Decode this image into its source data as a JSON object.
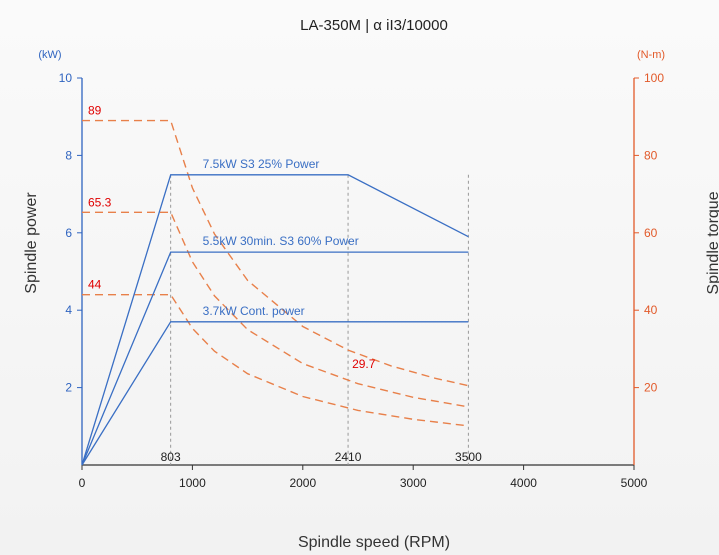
{
  "chart_data": {
    "type": "line",
    "title": "LA-350M | α iI3/10000",
    "xlabel": "Spindle speed (RPM)",
    "ylabel_left": "Spindle power",
    "ylabel_right": "Spindle torque",
    "unit_left": "(kW)",
    "unit_right": "(N-m)",
    "xlim": [
      0,
      5000
    ],
    "ylim_left": [
      0,
      10
    ],
    "ylim_right": [
      0,
      100
    ],
    "x_ticks": [
      "0",
      "1000",
      "2000",
      "3000",
      "4000",
      "5000"
    ],
    "y_left_ticks": [
      "2",
      "4",
      "6",
      "8",
      "10"
    ],
    "y_right_ticks": [
      "20",
      "40",
      "60",
      "80",
      "100"
    ],
    "colors": {
      "power": "#3a6fc4",
      "torque": "#e8804a",
      "axis_left": "#2f64c0",
      "axis_right": "#e25a2a",
      "value_label": "#e00000",
      "ref": "#999999"
    },
    "power_series": [
      {
        "name": "7.5kW S3 25% Power",
        "points": [
          [
            0,
            0
          ],
          [
            803,
            7.5
          ],
          [
            2410,
            7.5
          ],
          [
            3500,
            5.9
          ]
        ]
      },
      {
        "name": "5.5kW 30min. S3 60% Power",
        "points": [
          [
            0,
            0
          ],
          [
            803,
            5.5
          ],
          [
            3500,
            5.5
          ]
        ]
      },
      {
        "name": "3.7kW Cont. power",
        "points": [
          [
            0,
            0
          ],
          [
            803,
            3.7
          ],
          [
            3500,
            3.7
          ]
        ]
      }
    ],
    "torque_series": [
      {
        "points": [
          [
            0,
            89
          ],
          [
            803,
            89
          ],
          [
            1000,
            71.6
          ],
          [
            1200,
            59.7
          ],
          [
            1500,
            47.7
          ],
          [
            2000,
            35.8
          ],
          [
            2410,
            29.7
          ],
          [
            2800,
            25.6
          ],
          [
            3200,
            22.4
          ],
          [
            3500,
            20.5
          ]
        ]
      },
      {
        "points": [
          [
            0,
            65.3
          ],
          [
            803,
            65.3
          ],
          [
            1000,
            52.5
          ],
          [
            1200,
            43.7
          ],
          [
            1500,
            35
          ],
          [
            2000,
            26.2
          ],
          [
            2500,
            21
          ],
          [
            3000,
            17.5
          ],
          [
            3500,
            15
          ]
        ]
      },
      {
        "points": [
          [
            0,
            44
          ],
          [
            803,
            44
          ],
          [
            1000,
            35.3
          ],
          [
            1200,
            29.4
          ],
          [
            1500,
            23.6
          ],
          [
            2000,
            17.7
          ],
          [
            2500,
            14.1
          ],
          [
            3000,
            11.8
          ],
          [
            3500,
            10.1
          ]
        ]
      }
    ],
    "reference_speeds": [
      "803",
      "2410",
      "3500"
    ],
    "torque_value_labels": [
      {
        "text": "89",
        "x": 0,
        "y": 89
      },
      {
        "text": "65.3",
        "x": 0,
        "y": 65.3
      },
      {
        "text": "44",
        "x": 0,
        "y": 44
      },
      {
        "text": "29.7",
        "x": 2410,
        "y": 29.7
      }
    ],
    "grid": false
  }
}
